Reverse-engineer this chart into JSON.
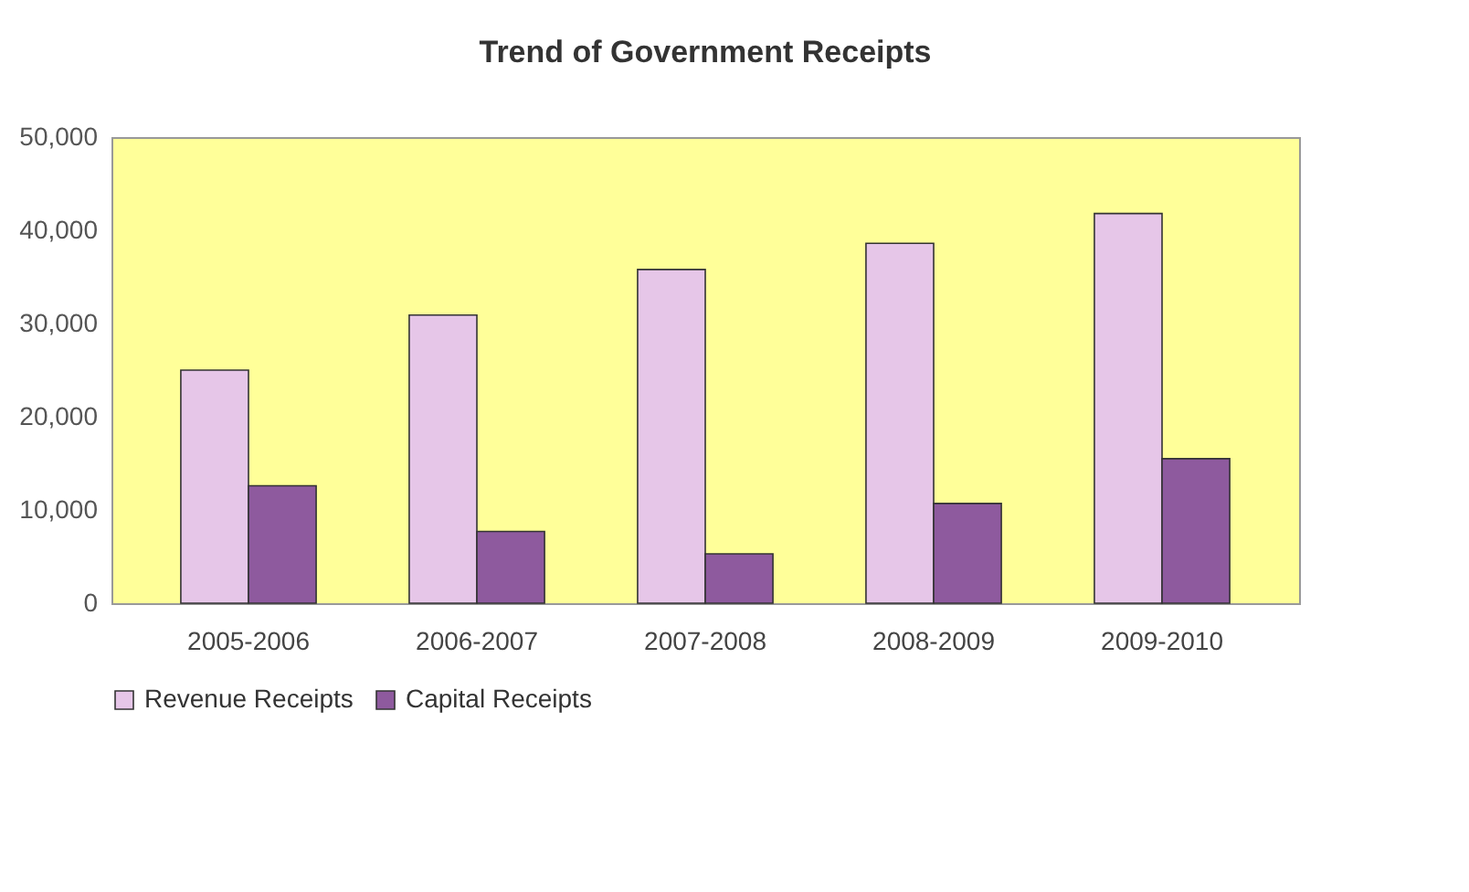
{
  "chart_data": {
    "type": "bar",
    "title": "Trend of Government Receipts",
    "categories": [
      "2005-2006",
      "2006-2007",
      "2007-2008",
      "2008-2009",
      "2009-2010"
    ],
    "series": [
      {
        "name": "Revenue Receipts",
        "color": "#e6c6e8",
        "values": [
          25000,
          30900,
          35800,
          38600,
          41800
        ]
      },
      {
        "name": "Capital Receipts",
        "color": "#8e5a9e",
        "values": [
          12600,
          7700,
          5300,
          10700,
          15500
        ]
      }
    ],
    "ylim": [
      0,
      50000
    ],
    "yticks": [
      {
        "value": 0,
        "label": "0"
      },
      {
        "value": 10000,
        "label": "10,000"
      },
      {
        "value": 20000,
        "label": "20,000"
      },
      {
        "value": 30000,
        "label": "30,000"
      },
      {
        "value": 40000,
        "label": "40,000"
      },
      {
        "value": 50000,
        "label": "50,000"
      }
    ],
    "grid": false,
    "legend": "bottom"
  }
}
